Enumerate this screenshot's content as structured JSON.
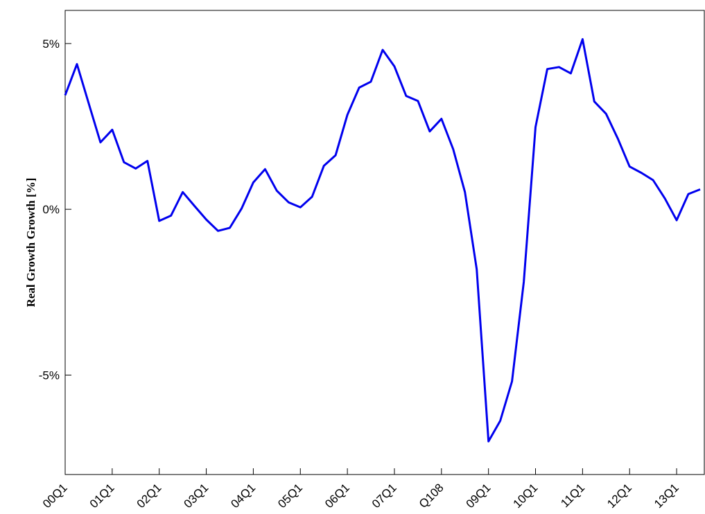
{
  "chart_data": {
    "type": "line",
    "y_label": "Real Growth Growth [%]",
    "categories": [
      "00Q1",
      null,
      null,
      null,
      "01Q1",
      null,
      null,
      null,
      "02Q1",
      null,
      null,
      null,
      "03Q1",
      null,
      null,
      null,
      "04Q1",
      null,
      null,
      null,
      "05Q1",
      null,
      null,
      null,
      "06Q1",
      null,
      null,
      null,
      "07Q1",
      null,
      null,
      null,
      "Q108",
      null,
      null,
      null,
      "09Q1",
      null,
      null,
      null,
      "10Q1",
      null,
      null,
      null,
      "11Q1",
      null,
      null,
      null,
      "12Q1",
      null,
      null,
      null,
      "13Q1",
      null,
      null
    ],
    "series": [
      {
        "color": "#0000ee",
        "values": [
          3.44,
          4.38,
          3.2,
          2.02,
          2.4,
          1.42,
          1.23,
          1.46,
          -0.35,
          -0.19,
          0.52,
          0.1,
          -0.31,
          -0.65,
          -0.56,
          0.02,
          0.81,
          1.21,
          0.56,
          0.21,
          0.06,
          0.38,
          1.31,
          1.63,
          2.85,
          3.67,
          3.85,
          4.81,
          4.31,
          3.42,
          3.27,
          2.35,
          2.73,
          1.81,
          0.52,
          -1.81,
          -7.0,
          -6.38,
          -5.19,
          -2.19,
          2.48,
          4.23,
          4.29,
          4.1,
          5.13,
          3.25,
          2.88,
          2.13,
          1.29,
          1.1,
          0.88,
          0.33,
          -0.33,
          0.46,
          0.6
        ]
      }
    ],
    "ylim": [
      -8,
      6
    ],
    "yticks": [
      {
        "value": -5,
        "label": "-5%"
      },
      {
        "value": 0,
        "label": "0%"
      },
      {
        "value": 5,
        "label": "5%"
      }
    ],
    "grid": false
  }
}
